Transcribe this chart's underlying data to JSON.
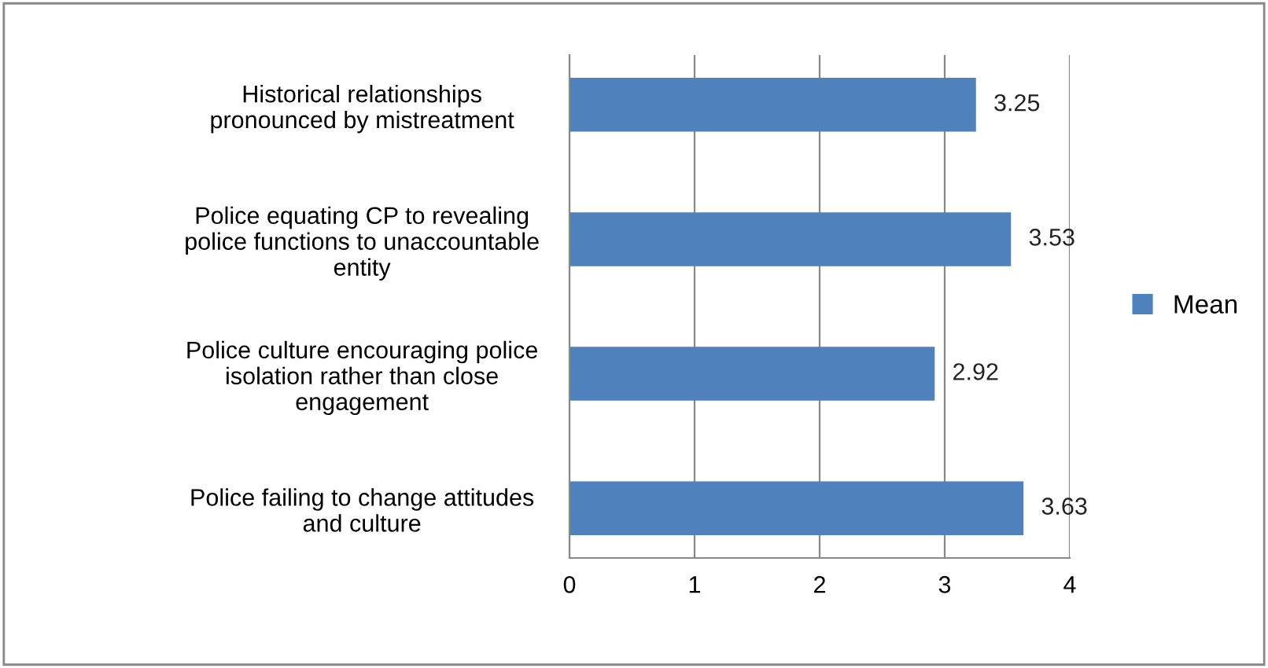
{
  "chart_data": {
    "type": "bar",
    "orientation": "horizontal",
    "categories": [
      "Historical relationships\npronounced by mistreatment",
      "Police equating CP to revealing\npolice functions to unaccountable\nentity",
      "Police culture encouraging police\nisolation rather than close\nengagement",
      "Police failing to change attitudes\nand culture"
    ],
    "series": [
      {
        "name": "Mean",
        "color": "#4f81bd",
        "values": [
          3.25,
          3.53,
          2.92,
          3.63
        ]
      }
    ],
    "xlim": [
      0,
      4
    ],
    "xticks": [
      0,
      1,
      2,
      3,
      4
    ],
    "grid": "x",
    "legend": "right",
    "data_labels": true
  }
}
